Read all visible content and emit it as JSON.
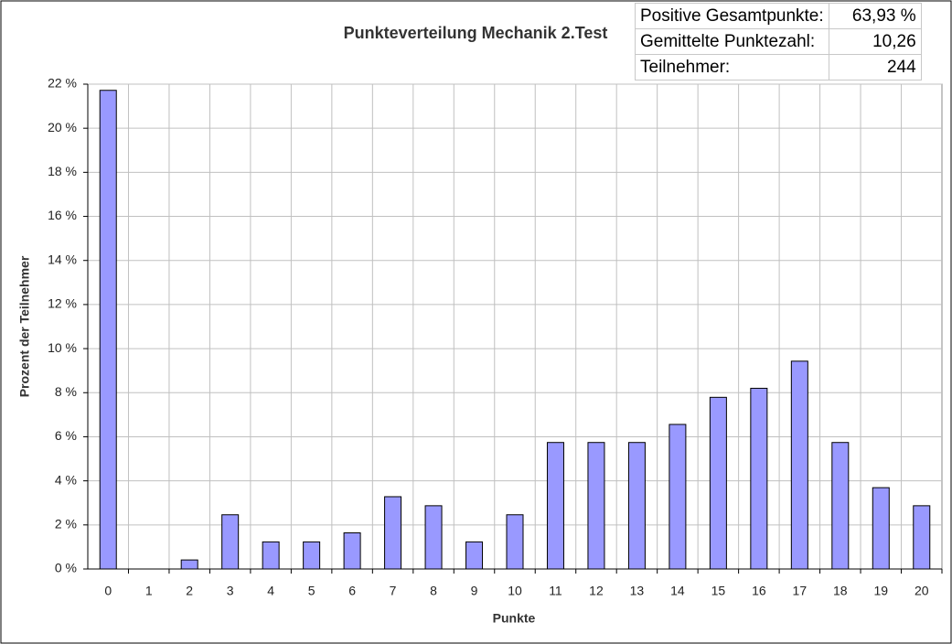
{
  "chart_data": {
    "type": "bar",
    "title": "Punkteverteilung Mechanik 2.Test",
    "x_label": "Punkte",
    "y_label": "Prozent der Teilnehmer",
    "categories": [
      "0",
      "1",
      "2",
      "3",
      "4",
      "5",
      "6",
      "7",
      "8",
      "9",
      "10",
      "11",
      "12",
      "13",
      "14",
      "15",
      "16",
      "17",
      "18",
      "19",
      "20"
    ],
    "values": [
      21.72,
      0,
      0.41,
      2.46,
      1.23,
      1.23,
      1.64,
      3.28,
      2.87,
      1.23,
      2.46,
      5.74,
      5.74,
      5.74,
      6.56,
      7.79,
      8.2,
      9.43,
      5.74,
      3.69,
      2.87
    ],
    "color": "#9999ff",
    "ylim": [
      0,
      22
    ],
    "yticks": [
      {
        "value": 0,
        "label": "0 %"
      },
      {
        "value": 2,
        "label": "2 %"
      },
      {
        "value": 4,
        "label": "4 %"
      },
      {
        "value": 6,
        "label": "6 %"
      },
      {
        "value": 8,
        "label": "8 %"
      },
      {
        "value": 10,
        "label": "10 %"
      },
      {
        "value": 12,
        "label": "12 %"
      },
      {
        "value": 14,
        "label": "14 %"
      },
      {
        "value": 16,
        "label": "16 %"
      },
      {
        "value": 18,
        "label": "18 %"
      },
      {
        "value": 20,
        "label": "20 %"
      },
      {
        "value": 22,
        "label": "22 %"
      }
    ],
    "grid": true
  },
  "info_table": {
    "rows": [
      [
        "Positive Gesamtpunkte:",
        "63,93 %"
      ],
      [
        "Gemittelte Punktezahl:",
        "10,26"
      ],
      [
        "Teilnehmer:",
        "244"
      ]
    ]
  }
}
